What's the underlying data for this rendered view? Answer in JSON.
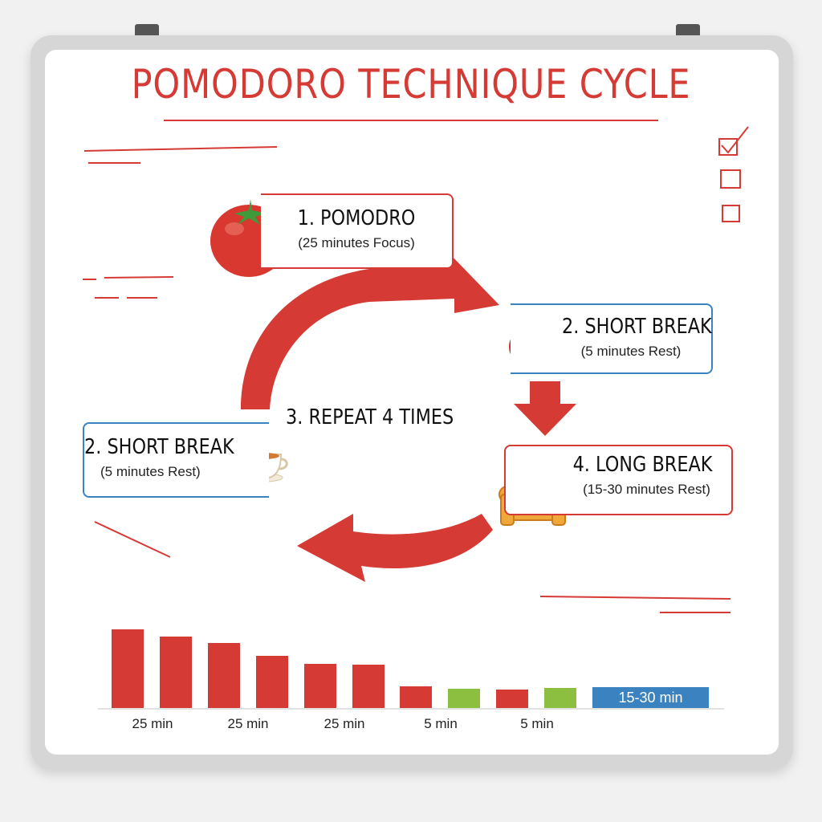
{
  "title": "POMODORO TECHNIQUE CYCLE",
  "steps": {
    "pomodoro": {
      "title": "1. POMODRO",
      "subtitle": "(25 minutes Focus)",
      "icon": "tomato-icon"
    },
    "short_break_right": {
      "title": "2. SHORT BREAK",
      "subtitle": "(5 minutes Rest)",
      "icon": "stopwatch-icon"
    },
    "short_break_left": {
      "title": "2. SHORT BREAK",
      "subtitle": "(5 minutes Rest)",
      "icon": "tea-cup-icon"
    },
    "long_break": {
      "title": "4. LONG BREAK",
      "subtitle": "(15-30 minutes Rest)",
      "icon": "armchair-icon"
    },
    "repeat": "3. REPEAT 4 TIMES"
  },
  "checklist": [
    true,
    false,
    false
  ],
  "colors": {
    "accent_red": "#d63a34",
    "blue": "#3b82c0",
    "green": "#8cbf3f",
    "chair": "#f0a83a"
  },
  "chart_data": {
    "type": "bar",
    "title": "",
    "bars": [
      {
        "value": 98,
        "color": "#d63a34"
      },
      {
        "value": 89,
        "color": "#d63a34"
      },
      {
        "value": 81,
        "color": "#d63a34"
      },
      {
        "value": 65,
        "color": "#d63a34"
      },
      {
        "value": 55,
        "color": "#d63a34"
      },
      {
        "value": 54,
        "color": "#d63a34"
      },
      {
        "value": 27,
        "color": "#d63a34"
      },
      {
        "value": 24,
        "color": "#8cbf3f"
      },
      {
        "value": 23,
        "color": "#d63a34"
      },
      {
        "value": 25,
        "color": "#8cbf3f"
      },
      {
        "value": 26,
        "color": "#3b82c0",
        "label": "15-30 min",
        "wide": true
      }
    ],
    "x_labels": [
      "25 min",
      "25 min",
      "25 min",
      "5 min",
      "5 min"
    ],
    "grid": false,
    "legend": "none"
  }
}
